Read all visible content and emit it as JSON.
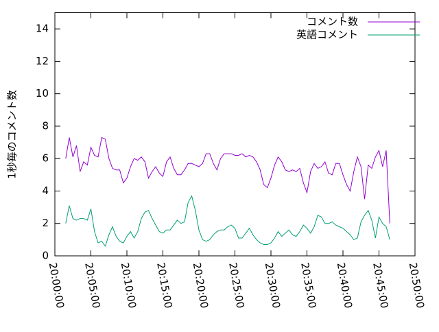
{
  "chart_data": {
    "type": "line",
    "ylabel": "1秒毎のコメント数",
    "x": [
      "20:01:30",
      "20:02:00",
      "20:02:30",
      "20:03:00",
      "20:03:30",
      "20:04:00",
      "20:04:30",
      "20:05:00",
      "20:05:30",
      "20:06:00",
      "20:06:30",
      "20:07:00",
      "20:07:30",
      "20:08:00",
      "20:08:30",
      "20:09:00",
      "20:09:30",
      "20:10:00",
      "20:10:30",
      "20:11:00",
      "20:11:30",
      "20:12:00",
      "20:12:30",
      "20:13:00",
      "20:13:30",
      "20:14:00",
      "20:14:30",
      "20:15:00",
      "20:15:30",
      "20:16:00",
      "20:16:30",
      "20:17:00",
      "20:17:30",
      "20:18:00",
      "20:18:30",
      "20:19:00",
      "20:19:30",
      "20:20:00",
      "20:20:30",
      "20:21:00",
      "20:21:30",
      "20:22:00",
      "20:22:30",
      "20:23:00",
      "20:23:30",
      "20:24:00",
      "20:24:30",
      "20:25:00",
      "20:25:30",
      "20:26:00",
      "20:26:30",
      "20:27:00",
      "20:27:30",
      "20:28:00",
      "20:28:30",
      "20:29:00",
      "20:29:30",
      "20:30:00",
      "20:30:30",
      "20:31:00",
      "20:31:30",
      "20:32:00",
      "20:32:30",
      "20:33:00",
      "20:33:30",
      "20:34:00",
      "20:34:30",
      "20:35:00",
      "20:35:30",
      "20:36:00",
      "20:36:30",
      "20:37:00",
      "20:37:30",
      "20:38:00",
      "20:38:30",
      "20:39:00",
      "20:39:30",
      "20:40:00",
      "20:40:30",
      "20:41:00",
      "20:41:30",
      "20:42:00",
      "20:42:30",
      "20:43:00",
      "20:43:30",
      "20:44:00",
      "20:44:30",
      "20:45:00",
      "20:45:30",
      "20:46:00",
      "20:46:30"
    ],
    "series": [
      {
        "name": "コメント数",
        "color": "#9400d3",
        "values": [
          6.0,
          7.3,
          6.1,
          6.8,
          5.2,
          5.8,
          5.6,
          6.7,
          6.2,
          6.1,
          7.3,
          7.2,
          6.0,
          5.4,
          5.3,
          5.3,
          4.5,
          4.8,
          5.5,
          6.0,
          5.9,
          6.1,
          5.8,
          4.8,
          5.2,
          5.5,
          5.1,
          4.9,
          5.8,
          6.1,
          5.4,
          5.0,
          5.0,
          5.3,
          5.7,
          5.7,
          5.6,
          5.5,
          5.7,
          6.3,
          6.3,
          5.7,
          5.3,
          6.0,
          6.3,
          6.3,
          6.3,
          6.2,
          6.2,
          6.3,
          6.1,
          6.2,
          6.1,
          5.8,
          5.3,
          4.4,
          4.2,
          4.8,
          5.6,
          6.1,
          5.8,
          5.3,
          5.2,
          5.3,
          5.2,
          5.4,
          4.5,
          3.9,
          5.2,
          5.7,
          5.4,
          5.5,
          5.8,
          5.1,
          5.0,
          5.7,
          5.7,
          5.0,
          4.4,
          4.0,
          5.2,
          6.1,
          5.5,
          3.5,
          5.6,
          5.4,
          6.1,
          6.5,
          5.5,
          6.5,
          2.0
        ]
      },
      {
        "name": "英語コメント",
        "color": "#009e73",
        "values": [
          2.0,
          3.1,
          2.3,
          2.2,
          2.3,
          2.3,
          2.2,
          2.9,
          1.5,
          0.8,
          0.9,
          0.6,
          1.3,
          1.8,
          1.2,
          0.9,
          0.8,
          1.2,
          1.5,
          1.1,
          1.5,
          2.3,
          2.7,
          2.8,
          2.3,
          1.9,
          1.5,
          1.4,
          1.6,
          1.6,
          1.9,
          2.2,
          2.0,
          2.1,
          3.3,
          3.7,
          2.8,
          1.6,
          1.0,
          0.9,
          1.0,
          1.3,
          1.5,
          1.6,
          1.6,
          1.8,
          1.9,
          1.7,
          1.1,
          1.1,
          1.4,
          1.7,
          1.3,
          1.0,
          0.8,
          0.7,
          0.7,
          0.8,
          1.1,
          1.5,
          1.2,
          1.4,
          1.6,
          1.3,
          1.2,
          1.5,
          1.9,
          1.7,
          1.4,
          1.8,
          2.5,
          2.4,
          2.0,
          2.0,
          2.1,
          1.9,
          1.8,
          1.7,
          1.5,
          1.3,
          1.0,
          1.1,
          2.1,
          2.5,
          2.8,
          2.2,
          1.1,
          2.4,
          2.0,
          1.8,
          1.0
        ]
      }
    ],
    "xlim": [
      "20:00:00",
      "20:50:00"
    ],
    "xticks": [
      "20:00:00",
      "20:05:00",
      "20:10:00",
      "20:15:00",
      "20:20:00",
      "20:25:00",
      "20:30:00",
      "20:35:00",
      "20:40:00",
      "20:45:00",
      "20:50:00"
    ],
    "ylim": [
      0,
      15
    ],
    "yticks": [
      0,
      2,
      4,
      6,
      8,
      10,
      12,
      14
    ],
    "legend": "top-right",
    "grid": false
  }
}
